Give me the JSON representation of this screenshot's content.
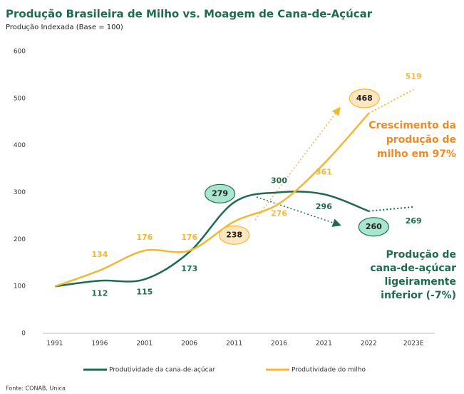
{
  "chart_data": {
    "type": "line",
    "title": "Produção Brasileira de Milho vs. Moagem de Cana-de-Açúcar",
    "subtitle": "Produção Indexada (Base = 100)",
    "categories": [
      "1991",
      "1996",
      "2001",
      "2006",
      "2011",
      "2016",
      "2021",
      "2022",
      "2023E"
    ],
    "series": [
      {
        "name": "Produtividade da cana-de-açúcar",
        "color": "#1e6b4e",
        "values": [
          100,
          112,
          115,
          173,
          279,
          300,
          296,
          260,
          269
        ]
      },
      {
        "name": "Produtividade do milho",
        "color": "#f5b731",
        "values": [
          100,
          134,
          176,
          176,
          238,
          276,
          361,
          468,
          519
        ]
      }
    ],
    "ylim": [
      0,
      600
    ],
    "yticks": [
      0,
      100,
      200,
      300,
      400,
      500,
      600
    ],
    "grid": false,
    "legend": "bottom",
    "annotations": [
      {
        "lines": [
          "Crescimento da",
          "produção de",
          "milho em 97%"
        ],
        "color": "#f08a24"
      },
      {
        "lines": [
          "Produção de",
          "cana-de-açúcar",
          "ligeiramente",
          "inferior (-7%)"
        ],
        "color": "#1e6b4e"
      }
    ],
    "source": "Fonte: CONAB, Unica"
  }
}
